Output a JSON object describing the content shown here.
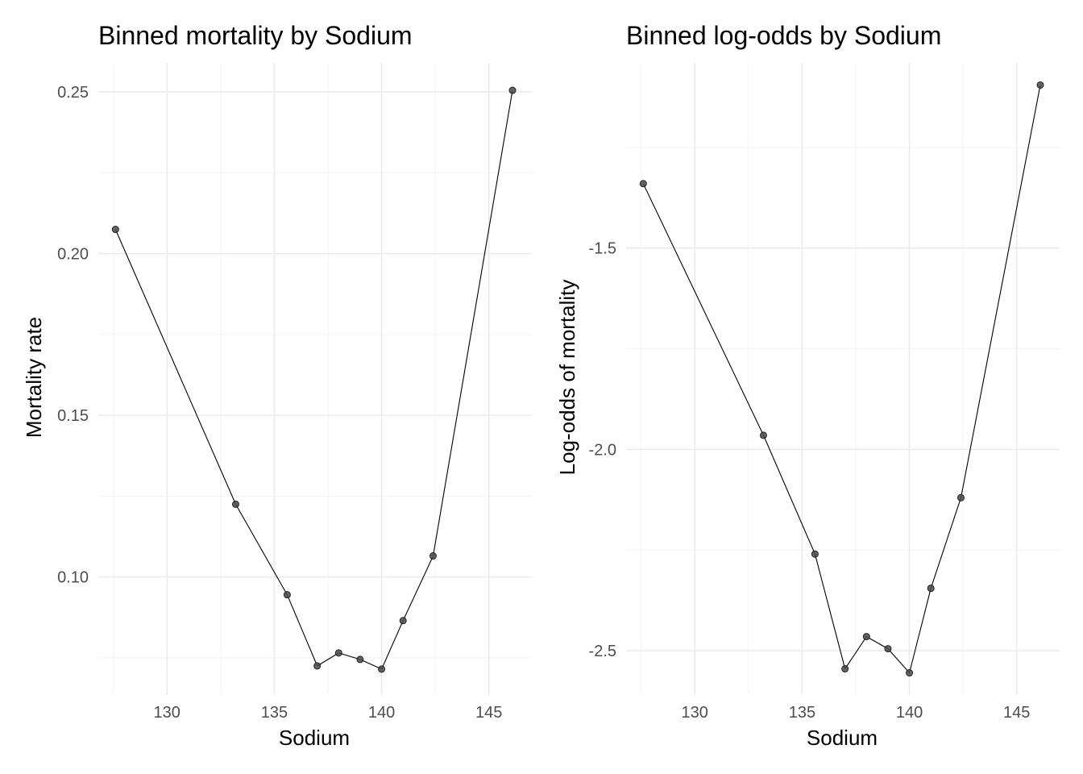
{
  "chart_data": [
    {
      "type": "line",
      "title": "Binned mortality by Sodium",
      "xlabel": "Sodium",
      "ylabel": "Mortality rate",
      "xlim": [
        126.8,
        147.0
      ],
      "ylim": [
        0.0635,
        0.259
      ],
      "x_ticks": [
        130,
        135,
        140,
        145
      ],
      "x_tick_labels": [
        "130",
        "135",
        "140",
        "145"
      ],
      "y_ticks": [
        0.1,
        0.15,
        0.2,
        0.25
      ],
      "y_tick_labels": [
        "0.10",
        "0.15",
        "0.20",
        "0.25"
      ],
      "grid": true,
      "legend": "none",
      "point_color": "#4a4a4a",
      "line_color": "#000000",
      "series": [
        {
          "x": [
            127.6,
            133.2,
            135.6,
            137.0,
            138.0,
            139.0,
            140.0,
            141.0,
            142.4,
            146.1
          ],
          "y": [
            0.2075,
            0.1225,
            0.0945,
            0.0725,
            0.0765,
            0.0745,
            0.0715,
            0.0865,
            0.1065,
            0.2505
          ]
        }
      ]
    },
    {
      "type": "line",
      "title": "Binned log-odds by Sodium",
      "xlabel": "Sodium",
      "ylabel": "Log-odds of mortality",
      "xlim": [
        126.8,
        147.0
      ],
      "ylim": [
        -2.61,
        -1.04
      ],
      "x_ticks": [
        130,
        135,
        140,
        145
      ],
      "x_tick_labels": [
        "130",
        "135",
        "140",
        "145"
      ],
      "y_ticks": [
        -2.5,
        -2.0,
        -1.5
      ],
      "y_tick_labels": [
        "-2.5",
        "-2.0",
        "-1.5"
      ],
      "grid": true,
      "legend": "none",
      "point_color": "#4a4a4a",
      "line_color": "#000000",
      "series": [
        {
          "x": [
            127.6,
            133.2,
            135.6,
            137.0,
            138.0,
            139.0,
            140.0,
            141.0,
            142.4,
            146.1
          ],
          "y": [
            -1.34,
            -1.965,
            -2.26,
            -2.545,
            -2.465,
            -2.495,
            -2.555,
            -2.345,
            -2.12,
            -1.095
          ]
        }
      ]
    }
  ]
}
